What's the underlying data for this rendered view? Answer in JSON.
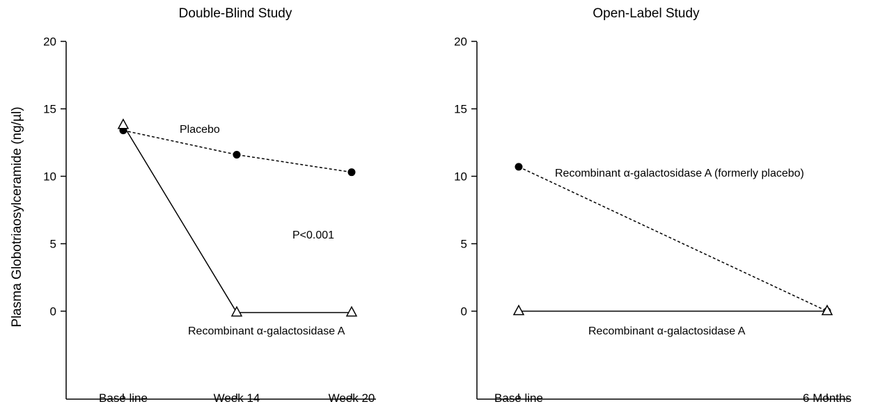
{
  "ylabel": "Plasma Globotriaosylceramide (ng/µl)",
  "chart_data": [
    {
      "type": "line",
      "title": "Double-Blind Study",
      "categories": [
        "Base line",
        "Week 14",
        "Week 20"
      ],
      "yticks": [
        0,
        5,
        10,
        15,
        20
      ],
      "ylim": [
        -6.3,
        20
      ],
      "series": [
        {
          "name": "Placebo",
          "marker": "circle",
          "style": "dashed",
          "values": [
            13.4,
            11.6,
            10.3
          ]
        },
        {
          "name": "Recombinant α-galactosidase A",
          "marker": "triangle",
          "style": "solid",
          "values": [
            13.8,
            -0.1,
            -0.1
          ]
        }
      ],
      "annotation": "P<0.001"
    },
    {
      "type": "line",
      "title": "Open-Label Study",
      "categories": [
        "Base line",
        "6 Months"
      ],
      "yticks": [
        0,
        5,
        10,
        15,
        20
      ],
      "ylim": [
        -6.3,
        20
      ],
      "series": [
        {
          "name": "Recombinant α-galactosidase A (formerly placebo)",
          "marker": "circle",
          "style": "dashed",
          "values": [
            10.7,
            0.0
          ]
        },
        {
          "name": "Recombinant α-galactosidase A",
          "marker": "triangle",
          "style": "solid",
          "values": [
            0.0,
            0.0
          ]
        }
      ]
    }
  ]
}
